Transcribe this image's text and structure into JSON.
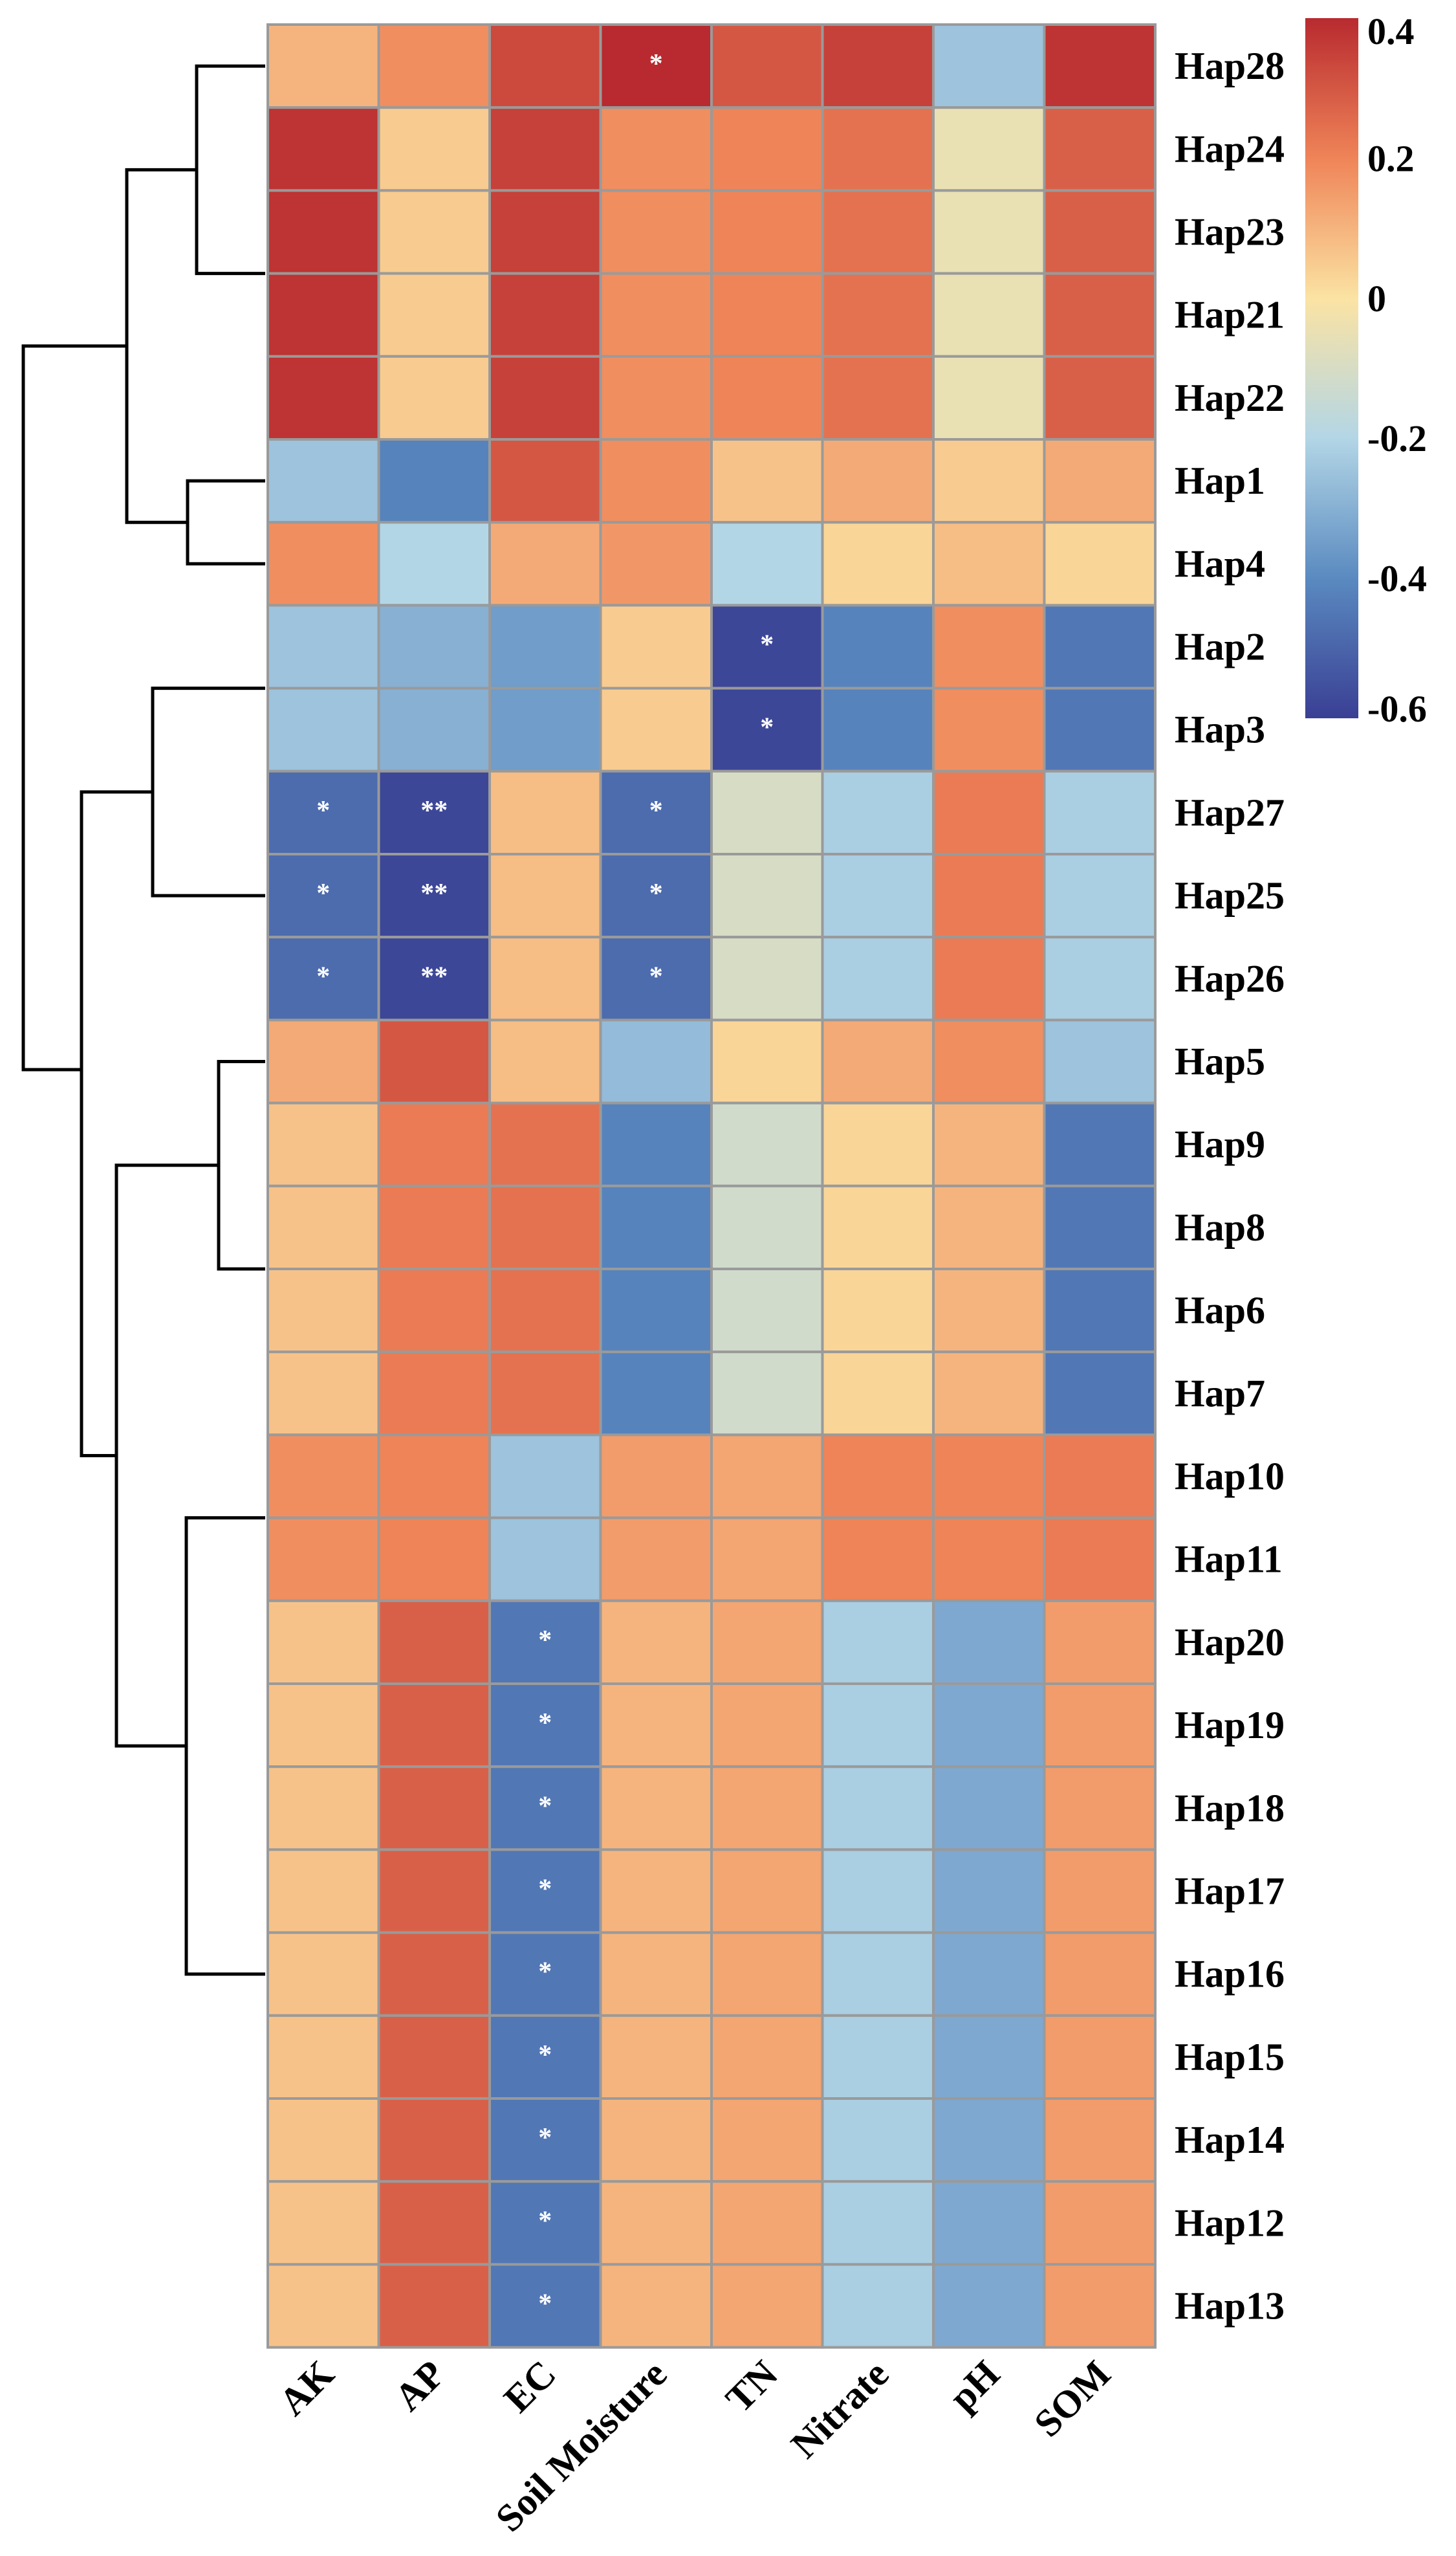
{
  "chart_data": {
    "type": "heatmap",
    "title": "",
    "columns": [
      "AK",
      "AP",
      "EC",
      "Soil Moisture",
      "TN",
      "Nitrate",
      "pH",
      "SOM"
    ],
    "rows": [
      "Hap28",
      "Hap24",
      "Hap23",
      "Hap21",
      "Hap22",
      "Hap1",
      "Hap4",
      "Hap2",
      "Hap3",
      "Hap27",
      "Hap25",
      "Hap26",
      "Hap5",
      "Hap9",
      "Hap8",
      "Hap6",
      "Hap7",
      "Hap10",
      "Hap11",
      "Hap20",
      "Hap19",
      "Hap18",
      "Hap17",
      "Hap16",
      "Hap15",
      "Hap14",
      "Hap12",
      "Hap13"
    ],
    "values": [
      [
        0.1,
        0.18,
        0.33,
        0.42,
        0.3,
        0.35,
        -0.25,
        0.38
      ],
      [
        0.38,
        0.05,
        0.35,
        0.18,
        0.2,
        0.24,
        -0.05,
        0.28
      ],
      [
        0.38,
        0.05,
        0.35,
        0.18,
        0.2,
        0.24,
        -0.05,
        0.28
      ],
      [
        0.38,
        0.05,
        0.35,
        0.18,
        0.2,
        0.24,
        -0.05,
        0.28
      ],
      [
        0.38,
        0.05,
        0.35,
        0.18,
        0.2,
        0.24,
        -0.05,
        0.28
      ],
      [
        -0.25,
        -0.42,
        0.3,
        0.18,
        0.07,
        0.12,
        0.05,
        0.12
      ],
      [
        0.18,
        -0.2,
        0.12,
        0.16,
        -0.2,
        0.03,
        0.08,
        0.03
      ],
      [
        -0.25,
        -0.3,
        -0.35,
        0.05,
        -0.58,
        -0.42,
        0.18,
        -0.45
      ],
      [
        -0.25,
        -0.3,
        -0.35,
        0.05,
        -0.58,
        -0.42,
        0.18,
        -0.45
      ],
      [
        -0.48,
        -0.58,
        0.08,
        -0.48,
        -0.1,
        -0.22,
        0.22,
        -0.22
      ],
      [
        -0.48,
        -0.58,
        0.08,
        -0.48,
        -0.1,
        -0.22,
        0.22,
        -0.22
      ],
      [
        -0.48,
        -0.58,
        0.08,
        -0.48,
        -0.1,
        -0.22,
        0.22,
        -0.22
      ],
      [
        0.12,
        0.3,
        0.08,
        -0.27,
        0.03,
        0.12,
        0.18,
        -0.25
      ],
      [
        0.07,
        0.22,
        0.24,
        -0.42,
        -0.12,
        0.03,
        0.1,
        -0.45
      ],
      [
        0.07,
        0.22,
        0.24,
        -0.42,
        -0.12,
        0.03,
        0.1,
        -0.45
      ],
      [
        0.07,
        0.22,
        0.24,
        -0.42,
        -0.12,
        0.03,
        0.1,
        -0.45
      ],
      [
        0.07,
        0.22,
        0.24,
        -0.42,
        -0.12,
        0.03,
        0.1,
        -0.45
      ],
      [
        0.18,
        0.2,
        -0.25,
        0.15,
        0.13,
        0.2,
        0.2,
        0.22
      ],
      [
        0.18,
        0.2,
        -0.25,
        0.15,
        0.13,
        0.2,
        0.2,
        0.22
      ],
      [
        0.07,
        0.28,
        -0.45,
        0.1,
        0.13,
        -0.22,
        -0.32,
        0.15
      ],
      [
        0.07,
        0.28,
        -0.45,
        0.1,
        0.13,
        -0.22,
        -0.32,
        0.15
      ],
      [
        0.07,
        0.28,
        -0.45,
        0.1,
        0.13,
        -0.22,
        -0.32,
        0.15
      ],
      [
        0.07,
        0.28,
        -0.45,
        0.1,
        0.13,
        -0.22,
        -0.32,
        0.15
      ],
      [
        0.07,
        0.28,
        -0.45,
        0.1,
        0.13,
        -0.22,
        -0.32,
        0.15
      ],
      [
        0.07,
        0.28,
        -0.45,
        0.1,
        0.13,
        -0.22,
        -0.32,
        0.15
      ],
      [
        0.07,
        0.28,
        -0.45,
        0.1,
        0.13,
        -0.22,
        -0.32,
        0.15
      ],
      [
        0.07,
        0.28,
        -0.45,
        0.1,
        0.13,
        -0.22,
        -0.32,
        0.15
      ],
      [
        0.07,
        0.28,
        -0.45,
        0.1,
        0.13,
        -0.22,
        -0.32,
        0.15
      ]
    ],
    "significance": [
      [
        "",
        "",
        "",
        "*",
        "",
        "",
        "",
        ""
      ],
      [
        "",
        "",
        "",
        "",
        "",
        "",
        "",
        ""
      ],
      [
        "",
        "",
        "",
        "",
        "",
        "",
        "",
        ""
      ],
      [
        "",
        "",
        "",
        "",
        "",
        "",
        "",
        ""
      ],
      [
        "",
        "",
        "",
        "",
        "",
        "",
        "",
        ""
      ],
      [
        "",
        "",
        "",
        "",
        "",
        "",
        "",
        ""
      ],
      [
        "",
        "",
        "",
        "",
        "",
        "",
        "",
        ""
      ],
      [
        "",
        "",
        "",
        "",
        "*",
        "",
        "",
        ""
      ],
      [
        "",
        "",
        "",
        "",
        "*",
        "",
        "",
        ""
      ],
      [
        "*",
        "**",
        "",
        "*",
        "",
        "",
        "",
        ""
      ],
      [
        "*",
        "**",
        "",
        "*",
        "",
        "",
        "",
        ""
      ],
      [
        "*",
        "**",
        "",
        "*",
        "",
        "",
        "",
        ""
      ],
      [
        "",
        "",
        "",
        "",
        "",
        "",
        "",
        ""
      ],
      [
        "",
        "",
        "",
        "",
        "",
        "",
        "",
        ""
      ],
      [
        "",
        "",
        "",
        "",
        "",
        "",
        "",
        ""
      ],
      [
        "",
        "",
        "",
        "",
        "",
        "",
        "",
        ""
      ],
      [
        "",
        "",
        "",
        "",
        "",
        "",
        "",
        ""
      ],
      [
        "",
        "",
        "",
        "",
        "",
        "",
        "",
        ""
      ],
      [
        "",
        "",
        "",
        "",
        "",
        "",
        "",
        ""
      ],
      [
        "",
        "",
        "*",
        "",
        "",
        "",
        "",
        ""
      ],
      [
        "",
        "",
        "*",
        "",
        "",
        "",
        "",
        ""
      ],
      [
        "",
        "",
        "*",
        "",
        "",
        "",
        "",
        ""
      ],
      [
        "",
        "",
        "*",
        "",
        "",
        "",
        "",
        ""
      ],
      [
        "",
        "",
        "*",
        "",
        "",
        "",
        "",
        ""
      ],
      [
        "",
        "",
        "*",
        "",
        "",
        "",
        "",
        ""
      ],
      [
        "",
        "",
        "*",
        "",
        "",
        "",
        "",
        ""
      ],
      [
        "",
        "",
        "*",
        "",
        "",
        "",
        "",
        ""
      ],
      [
        "",
        "",
        "*",
        "",
        "",
        "",
        "",
        ""
      ]
    ],
    "colorscale": {
      "min": -0.6,
      "max": 0.4,
      "ticks": [
        0.4,
        0.2,
        0,
        -0.2,
        -0.4,
        -0.6
      ],
      "tick_labels": [
        "0.4",
        "0.2",
        "0",
        "-0.2",
        "-0.4",
        "-0.6"
      ],
      "stops": [
        {
          "v": -0.6,
          "color": "#3a3f94"
        },
        {
          "v": -0.4,
          "color": "#5a8ac0"
        },
        {
          "v": -0.2,
          "color": "#b3d6e6"
        },
        {
          "v": 0.0,
          "color": "#fbe3a3"
        },
        {
          "v": 0.2,
          "color": "#ef8458"
        },
        {
          "v": 0.4,
          "color": "#b82a2f"
        }
      ]
    },
    "legend_placement": "top-right",
    "row_dendrogram": "left"
  }
}
